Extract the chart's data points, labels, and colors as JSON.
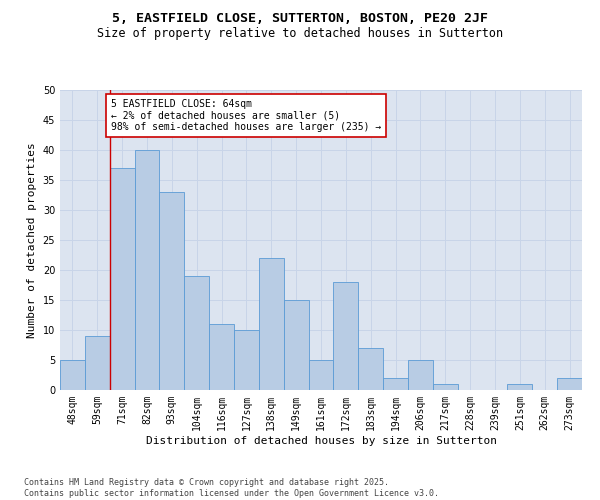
{
  "title_line1": "5, EASTFIELD CLOSE, SUTTERTON, BOSTON, PE20 2JF",
  "title_line2": "Size of property relative to detached houses in Sutterton",
  "xlabel": "Distribution of detached houses by size in Sutterton",
  "ylabel": "Number of detached properties",
  "categories": [
    "48sqm",
    "59sqm",
    "71sqm",
    "82sqm",
    "93sqm",
    "104sqm",
    "116sqm",
    "127sqm",
    "138sqm",
    "149sqm",
    "161sqm",
    "172sqm",
    "183sqm",
    "194sqm",
    "206sqm",
    "217sqm",
    "228sqm",
    "239sqm",
    "251sqm",
    "262sqm",
    "273sqm"
  ],
  "values": [
    5,
    9,
    37,
    40,
    33,
    19,
    11,
    10,
    22,
    15,
    5,
    18,
    7,
    2,
    5,
    1,
    0,
    0,
    1,
    0,
    2
  ],
  "bar_color": "#b8cce4",
  "bar_edge_color": "#5b9bd5",
  "grid_color": "#c8d4e8",
  "background_color": "#dce4f0",
  "vline_x": 1.5,
  "vline_color": "#cc0000",
  "annotation_text": "5 EASTFIELD CLOSE: 64sqm\n← 2% of detached houses are smaller (5)\n98% of semi-detached houses are larger (235) →",
  "annotation_box_color": "#ffffff",
  "annotation_box_edge": "#cc0000",
  "ylim": [
    0,
    50
  ],
  "yticks": [
    0,
    5,
    10,
    15,
    20,
    25,
    30,
    35,
    40,
    45,
    50
  ],
  "footnote": "Contains HM Land Registry data © Crown copyright and database right 2025.\nContains public sector information licensed under the Open Government Licence v3.0.",
  "title_fontsize": 9.5,
  "subtitle_fontsize": 8.5,
  "axis_label_fontsize": 8,
  "tick_fontsize": 7,
  "annotation_fontsize": 7,
  "footnote_fontsize": 6
}
